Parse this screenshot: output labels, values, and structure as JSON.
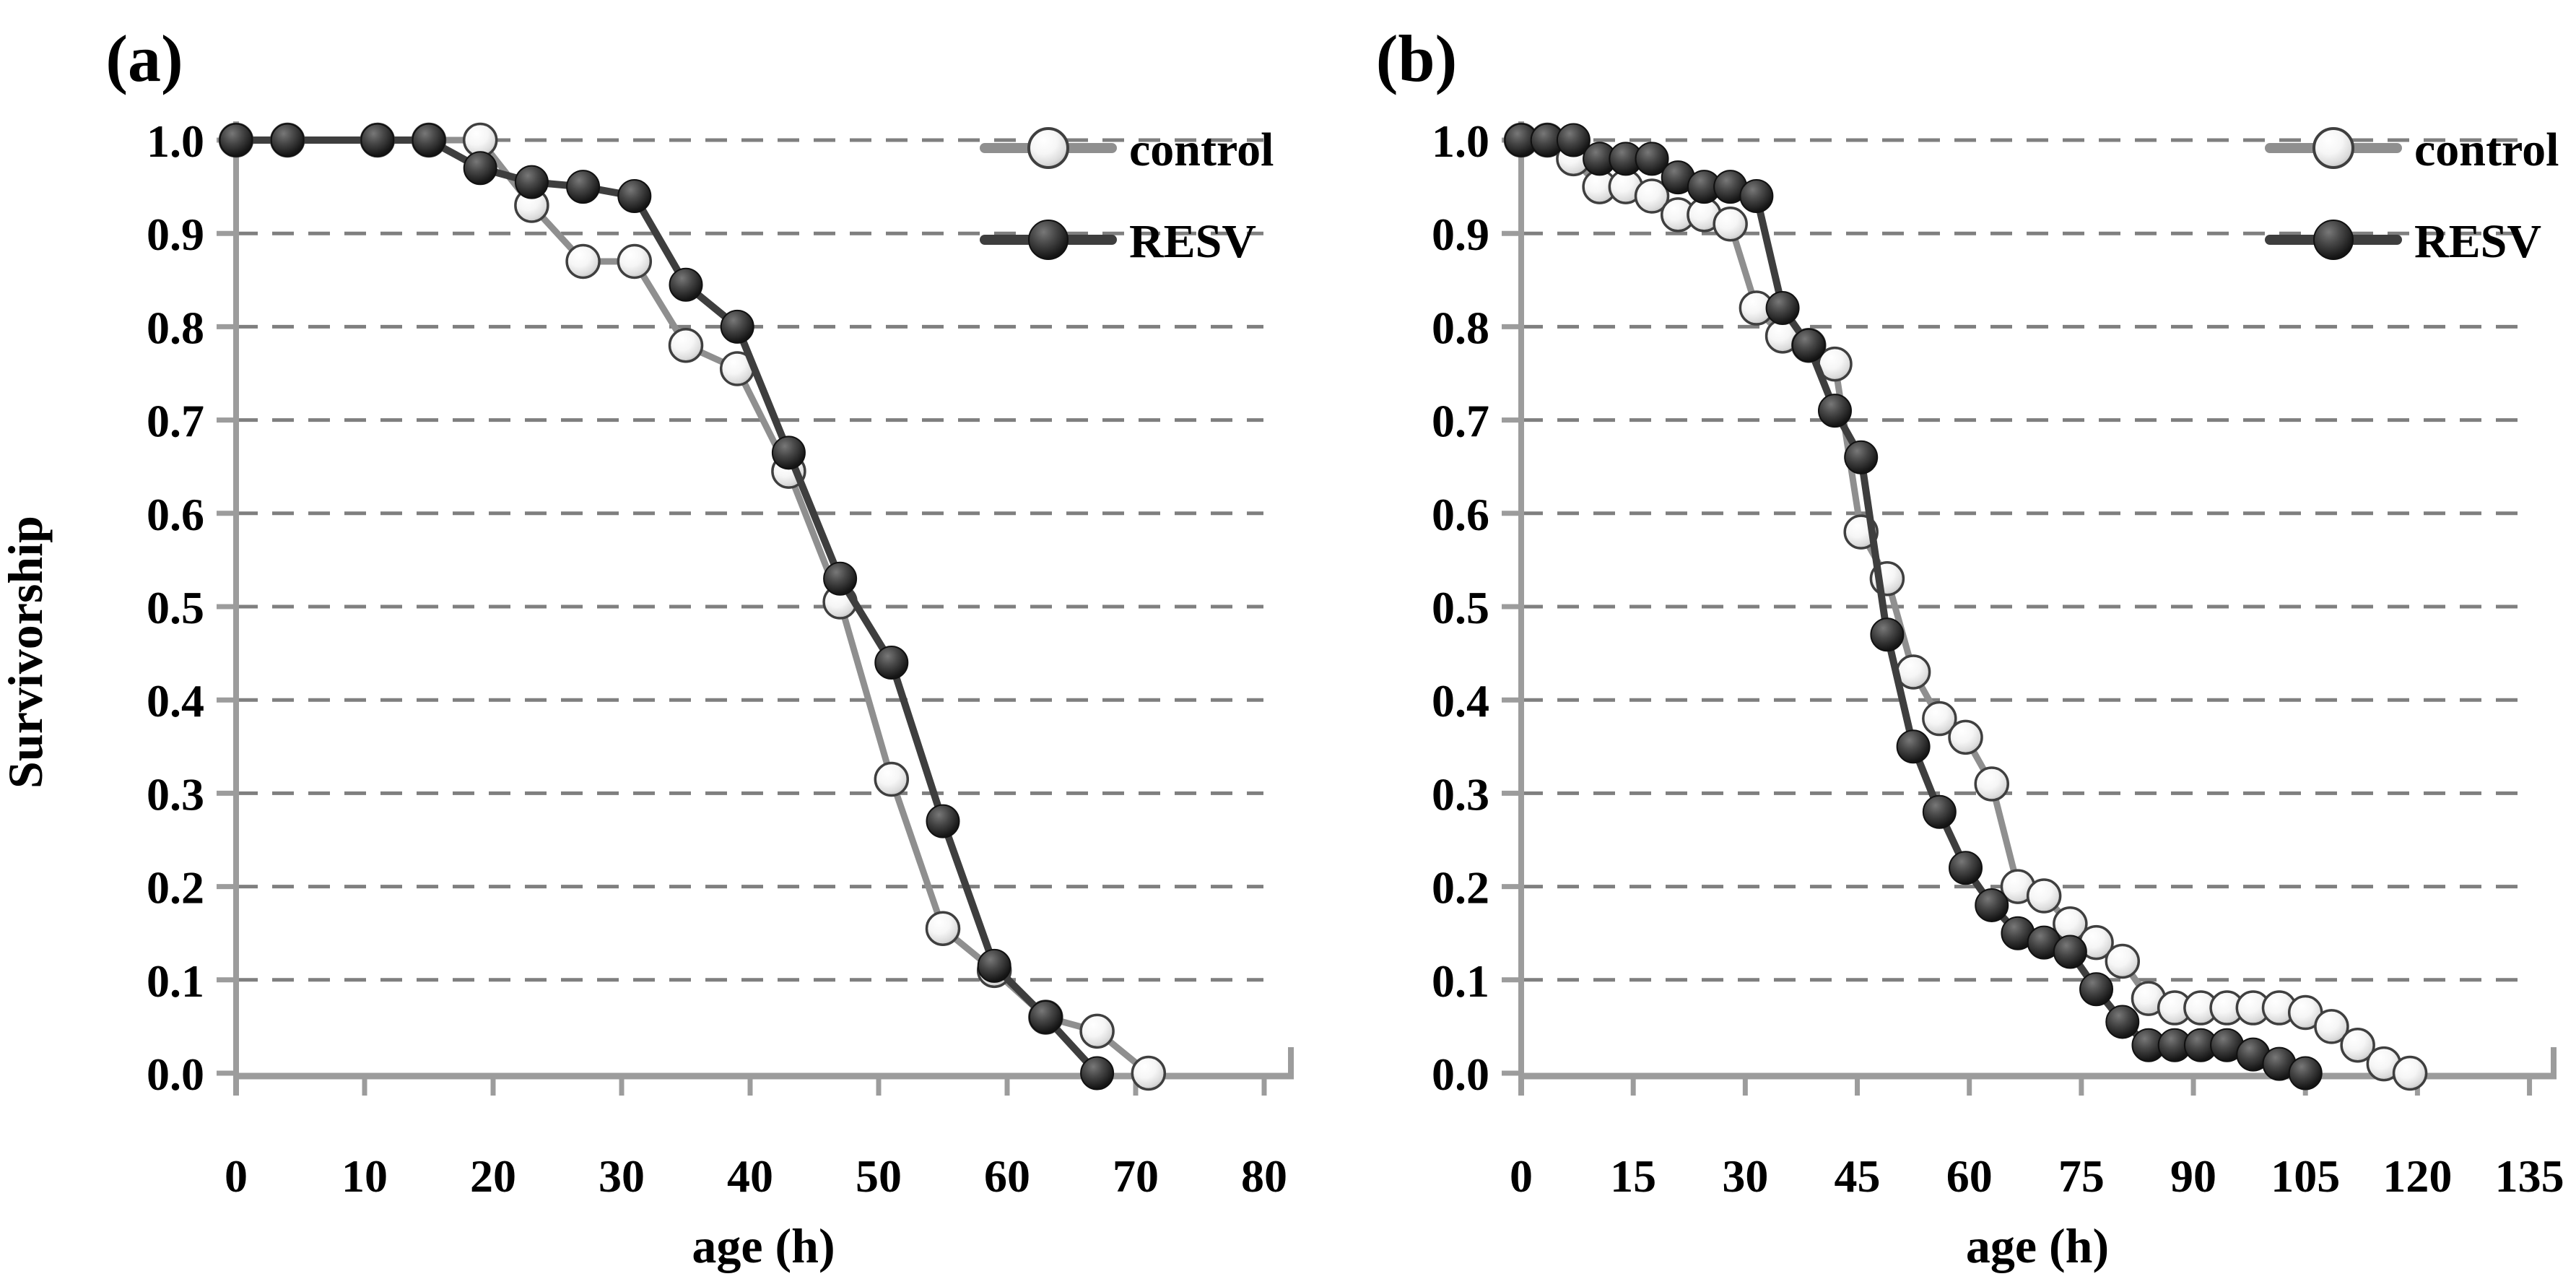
{
  "figure": {
    "ylabel": "Survivorship",
    "xlabel": "age (h)",
    "background": "#ffffff"
  },
  "colors": {
    "grid": "#7f7f7f",
    "axis": "#9c9c9c",
    "text": "#000000",
    "control_line": "#8f8f8f",
    "control_fill_center": "#ffffff",
    "control_fill_edge": "#b8b8b8",
    "control_ring": "#3f3f3f",
    "resv_line": "#3e3e3e",
    "resv_fill_center": "#787878",
    "resv_fill_edge": "#161616",
    "resv_ring": "#111111"
  },
  "chart_data": [
    {
      "type": "line",
      "panel_label": "(a)",
      "xlabel": "age (h)",
      "ylabel": "Survivorship",
      "xlim": [
        0,
        80
      ],
      "ylim": [
        0.0,
        1.0
      ],
      "xticks": [
        0,
        10,
        20,
        30,
        40,
        50,
        60,
        70,
        80
      ],
      "yticks": [
        0.0,
        0.1,
        0.2,
        0.3,
        0.4,
        0.5,
        0.6,
        0.7,
        0.8,
        0.9,
        1.0
      ],
      "grid": "horizontal-dashed",
      "legend_position": "top-right",
      "legend": [
        {
          "name": "control",
          "marker": "open-circle"
        },
        {
          "name": "RESV",
          "marker": "filled-circle"
        }
      ],
      "series": [
        {
          "name": "control",
          "x": [
            0,
            4,
            11,
            15,
            19,
            23,
            27,
            31,
            35,
            39,
            43,
            47,
            51,
            55,
            59,
            63,
            67,
            71
          ],
          "y": [
            1.0,
            1.0,
            1.0,
            1.0,
            1.0,
            0.93,
            0.87,
            0.87,
            0.78,
            0.755,
            0.645,
            0.505,
            0.315,
            0.155,
            0.11,
            0.06,
            0.045,
            0.0
          ]
        },
        {
          "name": "RESV",
          "x": [
            0,
            4,
            11,
            15,
            19,
            23,
            27,
            31,
            35,
            39,
            43,
            47,
            51,
            55,
            59,
            63,
            67
          ],
          "y": [
            1.0,
            1.0,
            1.0,
            1.0,
            0.97,
            0.955,
            0.95,
            0.94,
            0.845,
            0.8,
            0.665,
            0.53,
            0.44,
            0.27,
            0.115,
            0.06,
            0.0
          ]
        }
      ]
    },
    {
      "type": "line",
      "panel_label": "(b)",
      "xlabel": "age (h)",
      "ylabel": "Survivorship",
      "xlim": [
        0,
        135
      ],
      "ylim": [
        0.0,
        1.0
      ],
      "xticks": [
        0,
        15,
        30,
        45,
        60,
        75,
        90,
        105,
        120,
        135
      ],
      "yticks": [
        0.0,
        0.1,
        0.2,
        0.3,
        0.4,
        0.5,
        0.6,
        0.7,
        0.8,
        0.9,
        1.0
      ],
      "grid": "horizontal-dashed",
      "legend_position": "top-right",
      "legend": [
        {
          "name": "control",
          "marker": "open-circle"
        },
        {
          "name": "RESV",
          "marker": "filled-circle"
        }
      ],
      "series": [
        {
          "name": "control",
          "x": [
            0,
            3.5,
            7,
            10.5,
            14,
            17.5,
            21,
            24.5,
            28,
            31.5,
            35,
            38.5,
            42,
            45.5,
            49,
            52.5,
            56,
            59.5,
            63,
            66.5,
            70,
            73.5,
            77,
            80.5,
            84,
            87.5,
            91,
            94.5,
            98,
            101.5,
            105,
            108.5,
            112,
            115.5,
            119
          ],
          "y": [
            1.0,
            1.0,
            0.98,
            0.95,
            0.95,
            0.94,
            0.92,
            0.92,
            0.91,
            0.82,
            0.79,
            0.78,
            0.76,
            0.58,
            0.53,
            0.43,
            0.38,
            0.36,
            0.31,
            0.2,
            0.19,
            0.16,
            0.14,
            0.12,
            0.08,
            0.07,
            0.07,
            0.07,
            0.07,
            0.07,
            0.065,
            0.05,
            0.03,
            0.01,
            0.0
          ]
        },
        {
          "name": "RESV",
          "x": [
            0,
            3.5,
            7,
            10.5,
            14,
            17.5,
            21,
            24.5,
            28,
            31.5,
            35,
            38.5,
            42,
            45.5,
            49,
            52.5,
            56,
            59.5,
            63,
            66.5,
            70,
            73.5,
            77,
            80.5,
            84,
            87.5,
            91,
            94.5,
            98,
            101.5,
            105
          ],
          "y": [
            1.0,
            1.0,
            1.0,
            0.98,
            0.98,
            0.98,
            0.96,
            0.95,
            0.95,
            0.94,
            0.82,
            0.78,
            0.71,
            0.66,
            0.47,
            0.35,
            0.28,
            0.22,
            0.18,
            0.15,
            0.14,
            0.13,
            0.09,
            0.055,
            0.03,
            0.03,
            0.03,
            0.03,
            0.02,
            0.01,
            0.0
          ]
        }
      ]
    }
  ]
}
